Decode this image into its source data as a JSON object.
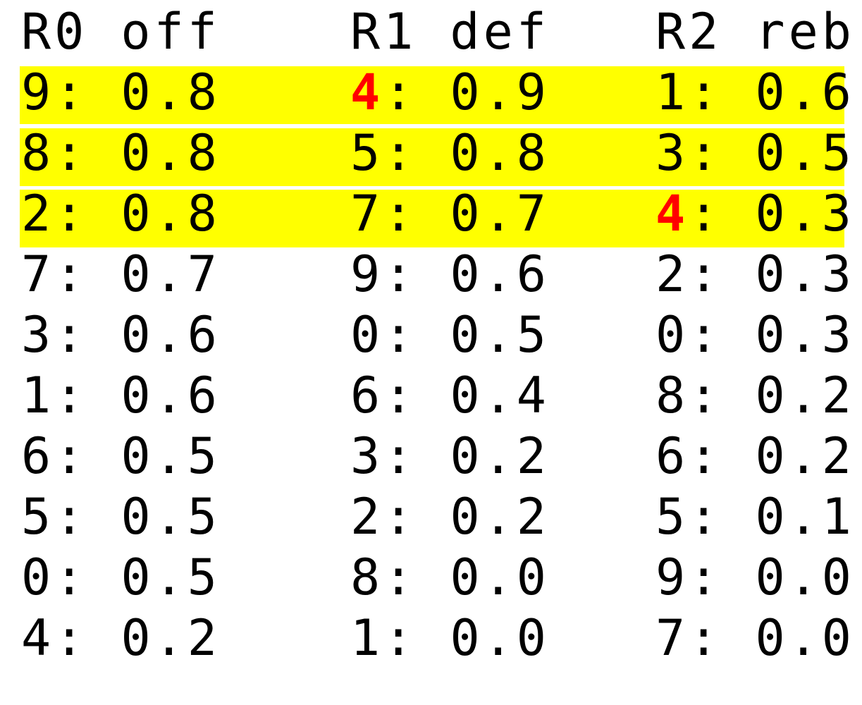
{
  "colors": {
    "text": "#000000",
    "highlight": "#ffff00",
    "marked_key": "#ff0000",
    "background": "#ffffff"
  },
  "columns": [
    {
      "header": "R0 off",
      "rows": [
        {
          "key": "9",
          "value": "0.8"
        },
        {
          "key": "8",
          "value": "0.8"
        },
        {
          "key": "2",
          "value": "0.8"
        },
        {
          "key": "7",
          "value": "0.7"
        },
        {
          "key": "3",
          "value": "0.6"
        },
        {
          "key": "1",
          "value": "0.6"
        },
        {
          "key": "6",
          "value": "0.5"
        },
        {
          "key": "5",
          "value": "0.5"
        },
        {
          "key": "0",
          "value": "0.5"
        },
        {
          "key": "4",
          "value": "0.2"
        }
      ]
    },
    {
      "header": "R1 def",
      "rows": [
        {
          "key": "4",
          "value": "0.9",
          "marked": true
        },
        {
          "key": "5",
          "value": "0.8"
        },
        {
          "key": "7",
          "value": "0.7"
        },
        {
          "key": "9",
          "value": "0.6"
        },
        {
          "key": "0",
          "value": "0.5"
        },
        {
          "key": "6",
          "value": "0.4"
        },
        {
          "key": "3",
          "value": "0.2"
        },
        {
          "key": "2",
          "value": "0.2"
        },
        {
          "key": "8",
          "value": "0.0"
        },
        {
          "key": "1",
          "value": "0.0"
        }
      ]
    },
    {
      "header": "R2 reb",
      "rows": [
        {
          "key": "1",
          "value": "0.6"
        },
        {
          "key": "3",
          "value": "0.5"
        },
        {
          "key": "4",
          "value": "0.3",
          "marked": true
        },
        {
          "key": "2",
          "value": "0.3"
        },
        {
          "key": "0",
          "value": "0.3"
        },
        {
          "key": "8",
          "value": "0.2"
        },
        {
          "key": "6",
          "value": "0.2"
        },
        {
          "key": "5",
          "value": "0.1"
        },
        {
          "key": "9",
          "value": "0.0"
        },
        {
          "key": "7",
          "value": "0.0"
        }
      ]
    }
  ],
  "highlighted_rows": 3
}
